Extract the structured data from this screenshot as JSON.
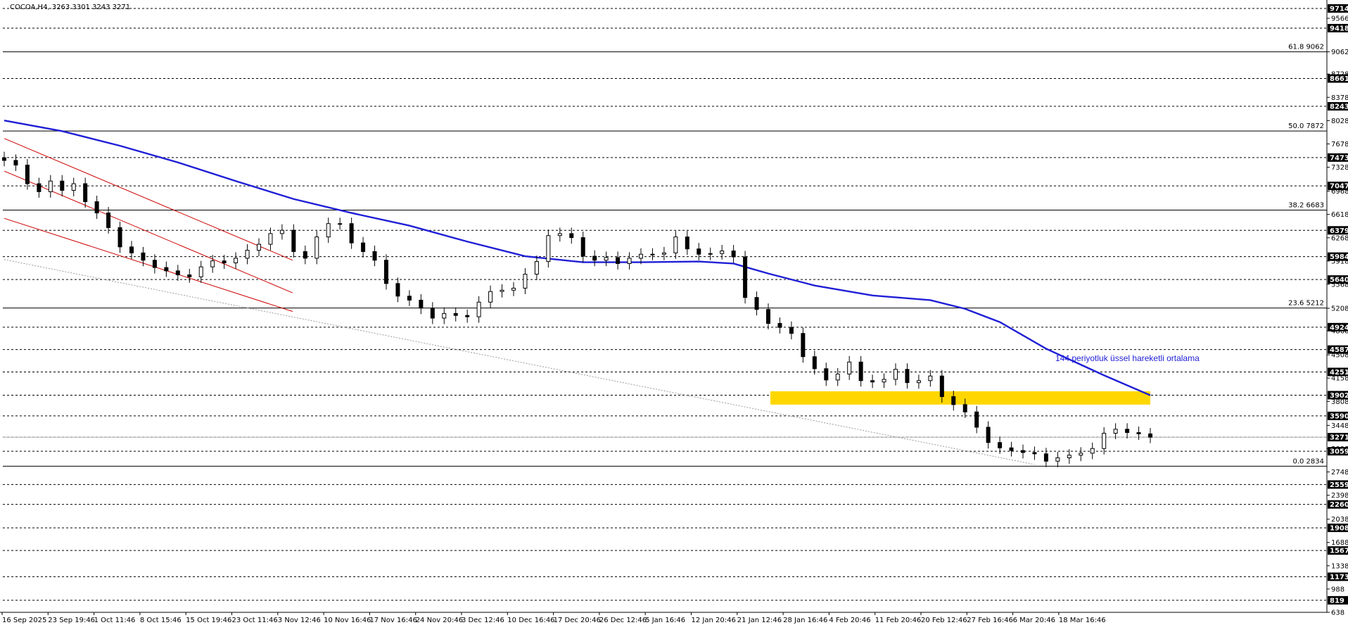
{
  "chart_data": {
    "type": "candlestick",
    "title": "COCOA,H4, 3263 3301 3243 3271",
    "ylim": [
      638,
      9714
    ],
    "grid": "dashed horizontal levels",
    "y_ticks_plain": [
      9566,
      9062,
      8728,
      8378,
      8028,
      7678,
      7328,
      6968,
      6618,
      6268,
      5918,
      5568,
      5208,
      4868,
      4508,
      4158,
      3808,
      3448,
      3098,
      2748,
      2398,
      2038,
      1688,
      1338,
      988,
      638
    ],
    "y_ticks_badged": [
      9714,
      9418,
      8661,
      8243,
      7473,
      7047,
      6379,
      5984,
      5640,
      4924,
      4587,
      4251,
      3902,
      3590,
      3271,
      3059,
      2559,
      2260,
      1908,
      1567,
      1173,
      819
    ],
    "x_labels": [
      "16 Sep 2025",
      "23 Sep 19:46",
      "1 Oct 11:46",
      "8 Oct 15:46",
      "15 Oct 19:46",
      "23 Oct 11:46",
      "3 Nov 12:46",
      "10 Nov 16:46",
      "17 Nov 16:46",
      "24 Nov 20:46",
      "3 Dec 12:46",
      "10 Dec 16:46",
      "17 Dec 20:46",
      "26 Dec 12:46",
      "5 Jan 16:46",
      "12 Jan 20:46",
      "21 Jan 12:46",
      "28 Jan 16:46",
      "4 Feb 20:46",
      "11 Feb 20:46",
      "20 Feb 12:46",
      "27 Feb 16:46",
      "6 Mar 20:46",
      "18 Mar 16:46"
    ],
    "fibonacci": [
      {
        "label": "61.8 9062",
        "value": 9062
      },
      {
        "label": "50.0 7872",
        "value": 7872
      },
      {
        "label": "38.2 6683",
        "value": 6683
      },
      {
        "label": "23.6 5212",
        "value": 5212
      },
      {
        "label": "0.0 2834",
        "value": 2834
      }
    ],
    "current_price": 3271,
    "zone": {
      "low": 3760,
      "high": 3960,
      "color": "#ffd700"
    },
    "ema_annotation": "144 periyotluk üssel hareketli ortalama",
    "ema_color": "#1f1fd6",
    "channel_color": "#cc0000",
    "price_path": [
      [
        0,
        7430
      ],
      [
        1,
        7360
      ],
      [
        2,
        7080
      ],
      [
        3,
        6960
      ],
      [
        4,
        7120
      ],
      [
        5,
        6980
      ],
      [
        6,
        7080
      ],
      [
        7,
        6810
      ],
      [
        8,
        6640
      ],
      [
        9,
        6420
      ],
      [
        10,
        6130
      ],
      [
        11,
        6040
      ],
      [
        12,
        5930
      ],
      [
        13,
        5820
      ],
      [
        14,
        5770
      ],
      [
        15,
        5710
      ],
      [
        16,
        5680
      ],
      [
        17,
        5830
      ],
      [
        18,
        5920
      ],
      [
        19,
        5890
      ],
      [
        20,
        5960
      ],
      [
        21,
        6080
      ],
      [
        22,
        6170
      ],
      [
        23,
        6330
      ],
      [
        24,
        6380
      ],
      [
        25,
        6060
      ],
      [
        26,
        5960
      ],
      [
        27,
        6280
      ],
      [
        28,
        6480
      ],
      [
        29,
        6480
      ],
      [
        30,
        6190
      ],
      [
        31,
        6060
      ],
      [
        32,
        5930
      ],
      [
        33,
        5580
      ],
      [
        34,
        5390
      ],
      [
        35,
        5330
      ],
      [
        36,
        5210
      ],
      [
        37,
        5060
      ],
      [
        38,
        5130
      ],
      [
        39,
        5100
      ],
      [
        40,
        5080
      ],
      [
        41,
        5300
      ],
      [
        42,
        5460
      ],
      [
        43,
        5480
      ],
      [
        44,
        5510
      ],
      [
        45,
        5720
      ],
      [
        46,
        5910
      ],
      [
        47,
        6300
      ],
      [
        48,
        6330
      ],
      [
        49,
        6270
      ],
      [
        50,
        5990
      ],
      [
        51,
        5930
      ],
      [
        52,
        5970
      ],
      [
        53,
        5880
      ],
      [
        54,
        5960
      ],
      [
        55,
        6020
      ],
      [
        56,
        6020
      ],
      [
        57,
        6040
      ],
      [
        58,
        6280
      ],
      [
        59,
        6100
      ],
      [
        60,
        6020
      ],
      [
        61,
        6030
      ],
      [
        62,
        6070
      ],
      [
        63,
        5980
      ],
      [
        64,
        5370
      ],
      [
        65,
        5190
      ],
      [
        66,
        4980
      ],
      [
        67,
        4920
      ],
      [
        68,
        4830
      ],
      [
        69,
        4480
      ],
      [
        70,
        4300
      ],
      [
        71,
        4130
      ],
      [
        72,
        4220
      ],
      [
        73,
        4400
      ],
      [
        74,
        4120
      ],
      [
        75,
        4100
      ],
      [
        76,
        4140
      ],
      [
        77,
        4290
      ],
      [
        78,
        4090
      ],
      [
        79,
        4120
      ],
      [
        80,
        4190
      ],
      [
        81,
        3880
      ],
      [
        82,
        3760
      ],
      [
        83,
        3650
      ],
      [
        84,
        3420
      ],
      [
        85,
        3190
      ],
      [
        86,
        3110
      ],
      [
        87,
        3070
      ],
      [
        88,
        3040
      ],
      [
        89,
        3020
      ],
      [
        90,
        2910
      ],
      [
        91,
        2960
      ],
      [
        92,
        3000
      ],
      [
        93,
        3030
      ],
      [
        94,
        3100
      ],
      [
        95,
        3330
      ],
      [
        96,
        3390
      ],
      [
        97,
        3340
      ],
      [
        98,
        3320
      ],
      [
        99,
        3271
      ]
    ],
    "ema_path": [
      [
        0,
        8030
      ],
      [
        5,
        7870
      ],
      [
        10,
        7650
      ],
      [
        15,
        7400
      ],
      [
        20,
        7120
      ],
      [
        25,
        6850
      ],
      [
        30,
        6640
      ],
      [
        35,
        6450
      ],
      [
        40,
        6210
      ],
      [
        45,
        5990
      ],
      [
        50,
        5900
      ],
      [
        55,
        5900
      ],
      [
        60,
        5910
      ],
      [
        63,
        5880
      ],
      [
        66,
        5730
      ],
      [
        70,
        5550
      ],
      [
        75,
        5400
      ],
      [
        80,
        5330
      ],
      [
        83,
        5200
      ],
      [
        86,
        5000
      ],
      [
        90,
        4600
      ],
      [
        95,
        4200
      ],
      [
        99,
        3900
      ]
    ]
  }
}
